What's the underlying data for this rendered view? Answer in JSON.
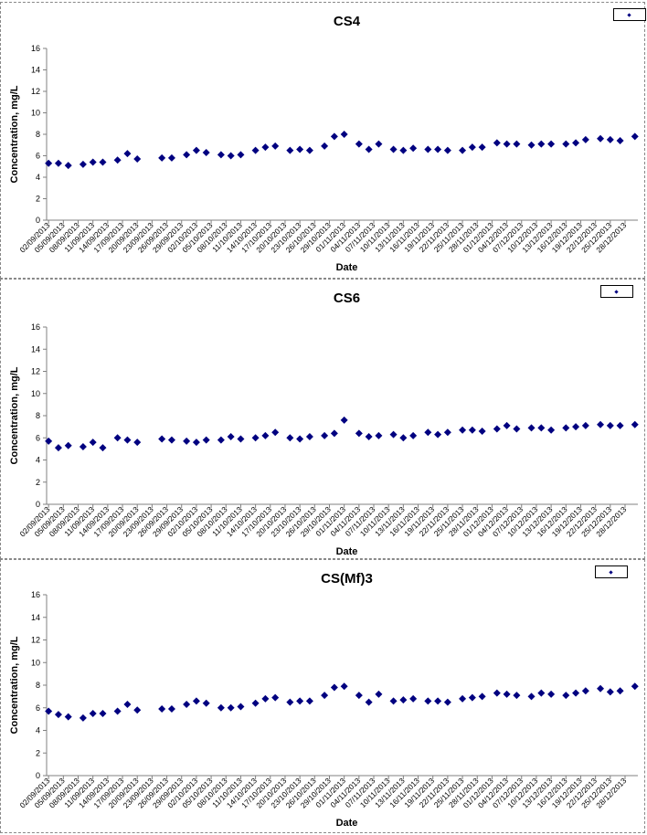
{
  "chart_data": [
    {
      "type": "scatter",
      "title": "CS4",
      "xlabel": "Date",
      "ylabel": "Concentration, mg/L",
      "ylim": [
        0,
        16
      ],
      "yticks": [
        "0",
        "2",
        "4",
        "6",
        "8",
        "10",
        "12",
        "14",
        "16"
      ],
      "xticks": [
        "02/09/2013",
        "05/09/2013",
        "08/09/2013",
        "11/09/2013",
        "14/09/2013",
        "17/09/2013",
        "20/09/2013",
        "23/09/2013",
        "26/09/2013",
        "29/09/2013",
        "02/10/2013",
        "05/10/2013",
        "08/10/2013",
        "11/10/2013",
        "14/10/2013",
        "17/10/2013",
        "20/10/2013",
        "23/10/2013",
        "26/10/2013",
        "29/10/2013",
        "01/11/2013",
        "04/11/2013",
        "07/11/2013",
        "10/11/2013",
        "13/11/2013",
        "16/11/2013",
        "19/11/2013",
        "22/11/2013",
        "25/11/2013",
        "28/11/2013",
        "01/12/2013",
        "04/12/2013",
        "07/12/2013",
        "10/12/2013",
        "13/12/2013",
        "16/12/2013",
        "19/12/2013",
        "22/12/2013",
        "25/12/2013",
        "28/12/2013"
      ],
      "legend": "top-right",
      "grid": false,
      "color": "#000080",
      "x": [
        "02/09/2013",
        "04/09/2013",
        "06/09/2013",
        "09/09/2013",
        "11/09/2013",
        "13/09/2013",
        "16/09/2013",
        "18/09/2013",
        "20/09/2013",
        "25/09/2013",
        "27/09/2013",
        "30/09/2013",
        "02/10/2013",
        "04/10/2013",
        "07/10/2013",
        "09/10/2013",
        "11/10/2013",
        "14/10/2013",
        "16/10/2013",
        "18/10/2013",
        "21/10/2013",
        "23/10/2013",
        "25/10/2013",
        "28/10/2013",
        "30/10/2013",
        "01/11/2013",
        "04/11/2013",
        "06/11/2013",
        "08/11/2013",
        "11/11/2013",
        "13/11/2013",
        "15/11/2013",
        "18/11/2013",
        "20/11/2013",
        "22/11/2013",
        "25/11/2013",
        "27/11/2013",
        "29/11/2013",
        "02/12/2013",
        "04/12/2013",
        "06/12/2013",
        "09/12/2013",
        "11/12/2013",
        "13/12/2013",
        "16/12/2013",
        "18/12/2013",
        "20/12/2013",
        "23/12/2013",
        "25/12/2013",
        "27/12/2013",
        "30/12/2013"
      ],
      "y": [
        5.3,
        5.3,
        5.1,
        5.2,
        5.4,
        5.4,
        5.6,
        6.2,
        5.7,
        5.8,
        5.8,
        6.1,
        6.5,
        6.3,
        6.1,
        6.0,
        6.1,
        6.5,
        6.8,
        6.9,
        6.5,
        6.6,
        6.5,
        6.9,
        7.8,
        8.0,
        7.1,
        6.6,
        7.1,
        6.6,
        6.5,
        6.7,
        6.6,
        6.6,
        6.5,
        6.5,
        6.8,
        6.8,
        7.2,
        7.1,
        7.1,
        7.0,
        7.1,
        7.1,
        7.1,
        7.2,
        7.5,
        7.6,
        7.5,
        7.4,
        7.8
      ]
    },
    {
      "type": "scatter",
      "title": "CS6",
      "xlabel": "Date",
      "ylabel": "Concentration, mg/L",
      "ylim": [
        0,
        16
      ],
      "yticks": [
        "0",
        "2",
        "4",
        "6",
        "8",
        "10",
        "12",
        "14",
        "16"
      ],
      "xticks": [
        "02/09/2013",
        "05/09/2013",
        "08/09/2013",
        "11/09/2013",
        "14/09/2013",
        "17/09/2013",
        "20/09/2013",
        "23/09/2013",
        "26/09/2013",
        "29/09/2013",
        "02/10/2013",
        "05/10/2013",
        "08/10/2013",
        "11/10/2013",
        "14/10/2013",
        "17/10/2013",
        "20/10/2013",
        "23/10/2013",
        "26/10/2013",
        "29/10/2013",
        "01/11/2013",
        "04/11/2013",
        "07/11/2013",
        "10/11/2013",
        "13/11/2013",
        "16/11/2013",
        "19/11/2013",
        "22/11/2013",
        "25/11/2013",
        "28/11/2013",
        "01/12/2013",
        "04/12/2013",
        "07/12/2013",
        "10/12/2013",
        "13/12/2013",
        "16/12/2013",
        "19/12/2013",
        "22/12/2013",
        "25/12/2013",
        "28/12/2013"
      ],
      "legend": "top-right",
      "grid": false,
      "color": "#000080",
      "x": [
        "02/09/2013",
        "04/09/2013",
        "06/09/2013",
        "09/09/2013",
        "11/09/2013",
        "13/09/2013",
        "16/09/2013",
        "18/09/2013",
        "20/09/2013",
        "25/09/2013",
        "27/09/2013",
        "30/09/2013",
        "02/10/2013",
        "04/10/2013",
        "07/10/2013",
        "09/10/2013",
        "11/10/2013",
        "14/10/2013",
        "16/10/2013",
        "18/10/2013",
        "21/10/2013",
        "23/10/2013",
        "25/10/2013",
        "28/10/2013",
        "30/10/2013",
        "01/11/2013",
        "04/11/2013",
        "06/11/2013",
        "08/11/2013",
        "11/11/2013",
        "13/11/2013",
        "15/11/2013",
        "18/11/2013",
        "20/11/2013",
        "22/11/2013",
        "25/11/2013",
        "27/11/2013",
        "29/11/2013",
        "02/12/2013",
        "04/12/2013",
        "06/12/2013",
        "09/12/2013",
        "11/12/2013",
        "13/12/2013",
        "16/12/2013",
        "18/12/2013",
        "20/12/2013",
        "23/12/2013",
        "25/12/2013",
        "27/12/2013",
        "30/12/2013"
      ],
      "y": [
        5.7,
        5.1,
        5.3,
        5.2,
        5.6,
        5.1,
        6.0,
        5.8,
        5.6,
        5.9,
        5.8,
        5.7,
        5.6,
        5.8,
        5.8,
        6.1,
        5.9,
        6.0,
        6.2,
        6.5,
        6.0,
        5.9,
        6.1,
        6.2,
        6.4,
        7.6,
        6.4,
        6.1,
        6.2,
        6.3,
        6.0,
        6.2,
        6.5,
        6.3,
        6.5,
        6.7,
        6.7,
        6.6,
        6.8,
        7.1,
        6.8,
        6.9,
        6.9,
        6.7,
        6.9,
        7.0,
        7.1,
        7.2,
        7.1,
        7.1,
        7.2
      ]
    },
    {
      "type": "scatter",
      "title": "CS(Mf)3",
      "xlabel": "Date",
      "ylabel": "Concentration, mg/L",
      "ylim": [
        0,
        16
      ],
      "yticks": [
        "0",
        "2",
        "4",
        "6",
        "8",
        "10",
        "12",
        "14",
        "16"
      ],
      "xticks": [
        "02/09/2013",
        "05/09/2013",
        "08/09/2013",
        "11/09/2013",
        "14/09/2013",
        "17/09/2013",
        "20/09/2013",
        "23/09/2013",
        "26/09/2013",
        "29/09/2013",
        "02/10/2013",
        "05/10/2013",
        "08/10/2013",
        "11/10/2013",
        "14/10/2013",
        "17/10/2013",
        "20/10/2013",
        "23/10/2013",
        "26/10/2013",
        "29/10/2013",
        "01/11/2013",
        "04/11/2013",
        "07/11/2013",
        "10/11/2013",
        "13/11/2013",
        "16/11/2013",
        "19/11/2013",
        "22/11/2013",
        "25/11/2013",
        "28/11/2013",
        "01/12/2013",
        "04/12/2013",
        "07/12/2013",
        "10/12/2013",
        "13/12/2013",
        "16/12/2013",
        "19/12/2013",
        "22/12/2013",
        "25/12/2013",
        "28/12/2013"
      ],
      "legend": "top-right",
      "grid": false,
      "color": "#000080",
      "x": [
        "02/09/2013",
        "04/09/2013",
        "06/09/2013",
        "09/09/2013",
        "11/09/2013",
        "13/09/2013",
        "16/09/2013",
        "18/09/2013",
        "20/09/2013",
        "25/09/2013",
        "27/09/2013",
        "30/09/2013",
        "02/10/2013",
        "04/10/2013",
        "07/10/2013",
        "09/10/2013",
        "11/10/2013",
        "14/10/2013",
        "16/10/2013",
        "18/10/2013",
        "21/10/2013",
        "23/10/2013",
        "25/10/2013",
        "28/10/2013",
        "30/10/2013",
        "01/11/2013",
        "04/11/2013",
        "06/11/2013",
        "08/11/2013",
        "11/11/2013",
        "13/11/2013",
        "15/11/2013",
        "18/11/2013",
        "20/11/2013",
        "22/11/2013",
        "25/11/2013",
        "27/11/2013",
        "29/11/2013",
        "02/12/2013",
        "04/12/2013",
        "06/12/2013",
        "09/12/2013",
        "11/12/2013",
        "13/12/2013",
        "16/12/2013",
        "18/12/2013",
        "20/12/2013",
        "23/12/2013",
        "25/12/2013",
        "27/12/2013",
        "30/12/2013"
      ],
      "y": [
        5.7,
        5.4,
        5.2,
        5.1,
        5.5,
        5.5,
        5.7,
        6.3,
        5.8,
        5.9,
        5.9,
        6.3,
        6.6,
        6.4,
        6.0,
        6.0,
        6.1,
        6.4,
        6.8,
        6.9,
        6.5,
        6.6,
        6.6,
        7.1,
        7.8,
        7.9,
        7.1,
        6.5,
        7.2,
        6.6,
        6.7,
        6.8,
        6.6,
        6.6,
        6.5,
        6.8,
        6.9,
        7.0,
        7.3,
        7.2,
        7.1,
        7.0,
        7.3,
        7.2,
        7.1,
        7.3,
        7.5,
        7.7,
        7.4,
        7.5,
        7.9
      ]
    }
  ]
}
